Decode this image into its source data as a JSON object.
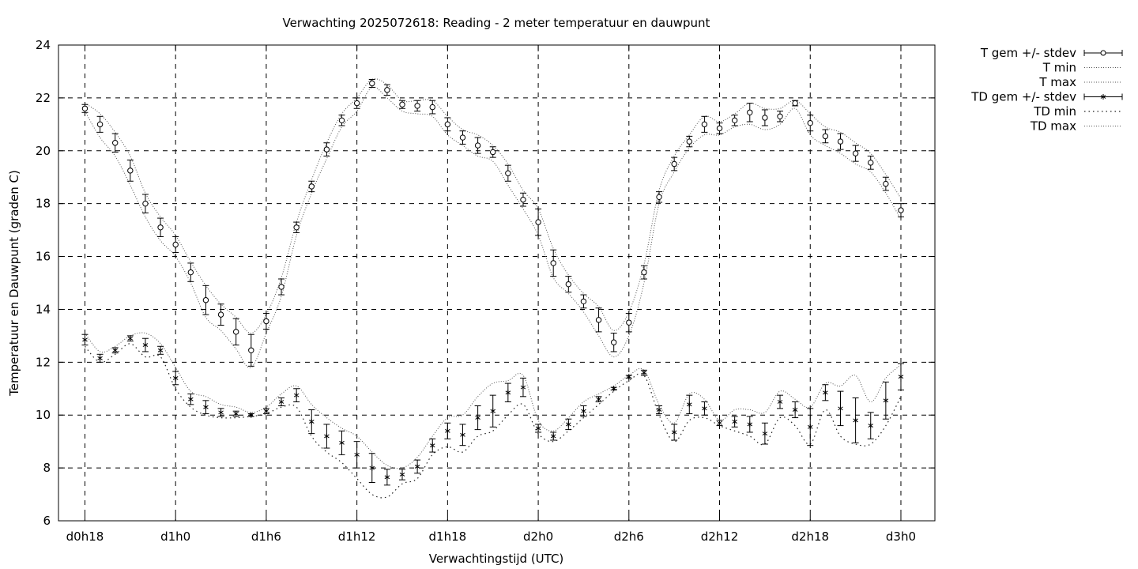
{
  "chart_data": {
    "type": "line",
    "title": "Verwachting 2025072618: Reading - 2 meter temperatuur en dauwpunt",
    "xlabel": "Verwachtingstijd (UTC)",
    "ylabel": "Temperatuur en Dauwpunt (graden C)",
    "x_unit": "hours since d0h18",
    "xlim": [
      -1.75,
      56.25
    ],
    "ylim": [
      6,
      24
    ],
    "grid": true,
    "legend_position": "outside-right",
    "x_ticks": [
      {
        "x": 0,
        "label": "d0h18"
      },
      {
        "x": 6,
        "label": "d1h0"
      },
      {
        "x": 12,
        "label": "d1h6"
      },
      {
        "x": 18,
        "label": "d1h12"
      },
      {
        "x": 24,
        "label": "d1h18"
      },
      {
        "x": 30,
        "label": "d2h0"
      },
      {
        "x": 36,
        "label": "d2h6"
      },
      {
        "x": 42,
        "label": "d2h12"
      },
      {
        "x": 48,
        "label": "d2h18"
      },
      {
        "x": 54,
        "label": "d3h0"
      }
    ],
    "y_ticks": [
      6,
      8,
      10,
      12,
      14,
      16,
      18,
      20,
      22,
      24
    ],
    "x": [
      0,
      1,
      2,
      3,
      4,
      5,
      6,
      7,
      8,
      9,
      10,
      11,
      12,
      13,
      14,
      15,
      16,
      17,
      18,
      19,
      20,
      21,
      22,
      23,
      24,
      25,
      26,
      27,
      28,
      29,
      30,
      31,
      32,
      33,
      34,
      35,
      36,
      37,
      38,
      39,
      40,
      41,
      42,
      43,
      44,
      45,
      46,
      47,
      48,
      49,
      50,
      51,
      52,
      53,
      54
    ],
    "series": [
      {
        "name": "T gem +/- stdev",
        "marker": "circle",
        "values": [
          21.6,
          21.0,
          20.3,
          19.25,
          18.0,
          17.1,
          16.45,
          15.4,
          14.35,
          13.8,
          13.15,
          12.45,
          13.55,
          14.85,
          17.1,
          18.65,
          20.05,
          21.15,
          21.8,
          22.55,
          22.3,
          21.75,
          21.7,
          21.65,
          21.0,
          20.5,
          20.2,
          19.95,
          19.15,
          18.15,
          17.3,
          15.75,
          14.95,
          14.3,
          13.6,
          12.75,
          13.5,
          15.4,
          18.25,
          19.5,
          20.35,
          21.0,
          20.85,
          21.15,
          21.45,
          21.25,
          21.3,
          21.8,
          21.05,
          20.55,
          20.35,
          19.9,
          19.55,
          18.75,
          17.75
        ],
        "stdev": [
          0.15,
          0.3,
          0.35,
          0.4,
          0.35,
          0.35,
          0.3,
          0.35,
          0.55,
          0.4,
          0.5,
          0.6,
          0.3,
          0.3,
          0.2,
          0.2,
          0.25,
          0.2,
          0.2,
          0.15,
          0.2,
          0.15,
          0.2,
          0.25,
          0.25,
          0.25,
          0.3,
          0.2,
          0.3,
          0.25,
          0.5,
          0.5,
          0.3,
          0.25,
          0.45,
          0.35,
          0.35,
          0.25,
          0.2,
          0.25,
          0.2,
          0.3,
          0.2,
          0.2,
          0.35,
          0.3,
          0.2,
          0.1,
          0.3,
          0.25,
          0.3,
          0.3,
          0.25,
          0.25,
          0.25
        ]
      },
      {
        "name": "T min",
        "style": "dotted",
        "values": [
          21.5,
          20.5,
          19.8,
          18.7,
          17.5,
          16.6,
          16.0,
          15.0,
          13.7,
          13.2,
          12.5,
          11.8,
          13.1,
          14.5,
          16.8,
          18.4,
          19.7,
          20.9,
          21.5,
          22.4,
          22.0,
          21.5,
          21.4,
          21.3,
          20.6,
          20.2,
          19.8,
          19.6,
          18.7,
          17.8,
          16.8,
          15.2,
          14.6,
          13.9,
          13.0,
          12.2,
          13.0,
          15.0,
          18.0,
          19.2,
          20.1,
          20.6,
          20.6,
          20.9,
          21.0,
          20.8,
          21.0,
          21.6,
          20.6,
          20.2,
          19.9,
          19.5,
          19.2,
          18.4,
          17.4
        ]
      },
      {
        "name": "T max",
        "style": "dotted",
        "values": [
          21.8,
          21.4,
          20.7,
          19.8,
          18.4,
          17.5,
          16.8,
          15.8,
          14.9,
          14.2,
          13.7,
          13.1,
          13.8,
          15.2,
          17.3,
          18.9,
          20.3,
          21.4,
          22.0,
          22.7,
          22.5,
          21.9,
          21.9,
          21.9,
          21.3,
          20.8,
          20.6,
          20.2,
          19.5,
          18.5,
          17.8,
          16.3,
          15.3,
          14.6,
          14.1,
          13.2,
          13.9,
          15.7,
          18.5,
          19.8,
          20.6,
          21.3,
          21.1,
          21.4,
          21.8,
          21.6,
          21.6,
          21.9,
          21.4,
          20.9,
          20.7,
          20.3,
          19.9,
          19.1,
          18.2
        ]
      },
      {
        "name": "TD gem +/- stdev",
        "marker": "star",
        "values": [
          12.85,
          12.15,
          12.45,
          12.9,
          12.65,
          12.45,
          11.4,
          10.6,
          10.3,
          10.1,
          10.05,
          10.0,
          10.15,
          10.5,
          10.75,
          9.75,
          9.2,
          8.95,
          8.5,
          8.0,
          7.65,
          7.75,
          8.05,
          8.85,
          9.4,
          9.25,
          9.9,
          10.15,
          10.85,
          11.05,
          9.5,
          9.2,
          9.65,
          10.15,
          10.6,
          11.0,
          11.45,
          11.6,
          10.2,
          9.35,
          10.4,
          10.25,
          9.7,
          9.75,
          9.65,
          9.3,
          10.5,
          10.2,
          9.55,
          10.85,
          10.25,
          9.8,
          9.6,
          10.55,
          11.45
        ],
        "stdev": [
          0.2,
          0.15,
          0.1,
          0.1,
          0.25,
          0.15,
          0.25,
          0.2,
          0.25,
          0.15,
          0.1,
          0.05,
          0.1,
          0.15,
          0.25,
          0.45,
          0.45,
          0.45,
          0.5,
          0.55,
          0.3,
          0.2,
          0.25,
          0.25,
          0.3,
          0.4,
          0.45,
          0.6,
          0.35,
          0.35,
          0.15,
          0.15,
          0.2,
          0.2,
          0.1,
          0.05,
          0.05,
          0.1,
          0.15,
          0.3,
          0.35,
          0.25,
          0.1,
          0.2,
          0.3,
          0.4,
          0.25,
          0.3,
          0.7,
          0.3,
          0.65,
          0.85,
          0.5,
          0.7,
          0.5
        ]
      },
      {
        "name": "TD min",
        "style": "loose-dotted",
        "values": [
          12.6,
          12.0,
          12.3,
          12.7,
          12.2,
          12.2,
          11.0,
          10.3,
          10.0,
          9.9,
          9.9,
          9.95,
          10.05,
          10.3,
          10.3,
          9.2,
          8.6,
          8.2,
          7.6,
          7.0,
          6.9,
          7.4,
          7.6,
          8.5,
          8.8,
          8.6,
          9.2,
          9.4,
          10.0,
          10.4,
          9.3,
          9.0,
          9.4,
          9.9,
          10.4,
          10.9,
          11.3,
          11.5,
          10.0,
          9.0,
          9.8,
          9.9,
          9.6,
          9.4,
          9.2,
          8.9,
          9.9,
          9.6,
          8.9,
          10.2,
          9.2,
          8.9,
          8.9,
          9.6,
          10.7
        ]
      },
      {
        "name": "TD max",
        "style": "dotted",
        "values": [
          13.1,
          12.4,
          12.6,
          13.0,
          13.1,
          12.7,
          11.8,
          10.9,
          10.7,
          10.4,
          10.3,
          10.1,
          10.3,
          10.8,
          11.1,
          10.4,
          9.9,
          9.5,
          9.2,
          8.6,
          8.1,
          8.0,
          8.4,
          9.2,
          9.9,
          10.0,
          10.7,
          11.2,
          11.3,
          11.5,
          9.8,
          9.4,
          9.9,
          10.5,
          10.8,
          11.1,
          11.5,
          11.7,
          10.4,
          9.7,
          10.8,
          10.6,
          9.8,
          10.2,
          10.2,
          10.1,
          10.9,
          10.6,
          10.3,
          11.2,
          11.1,
          11.5,
          10.5,
          11.4,
          11.9
        ]
      }
    ]
  }
}
